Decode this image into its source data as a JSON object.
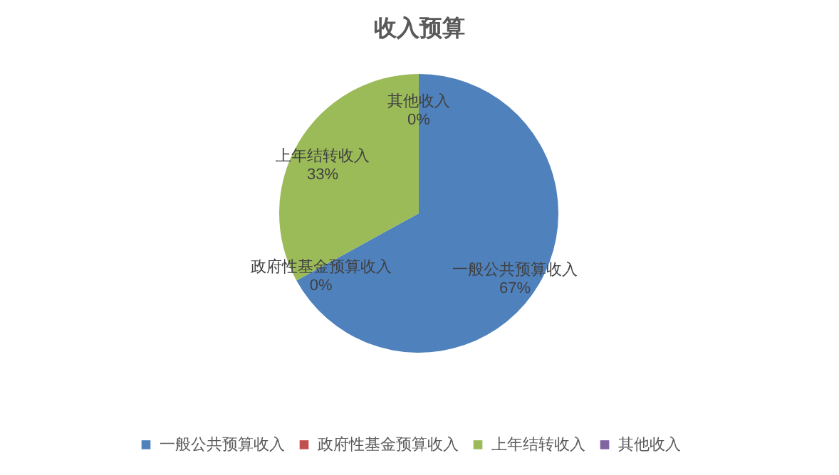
{
  "chart_data": {
    "type": "pie",
    "title": "收入预算",
    "categories": [
      "一般公共预算收入",
      "政府性基金预算收入",
      "上年结转收入",
      "其他收入"
    ],
    "values": [
      67,
      0,
      33,
      0
    ],
    "value_labels": [
      "67%",
      "0%",
      "33%",
      "0%"
    ],
    "colors": [
      "#4f81bd",
      "#c0504d",
      "#9bbb59",
      "#8064a2"
    ],
    "legend": "bottom"
  }
}
